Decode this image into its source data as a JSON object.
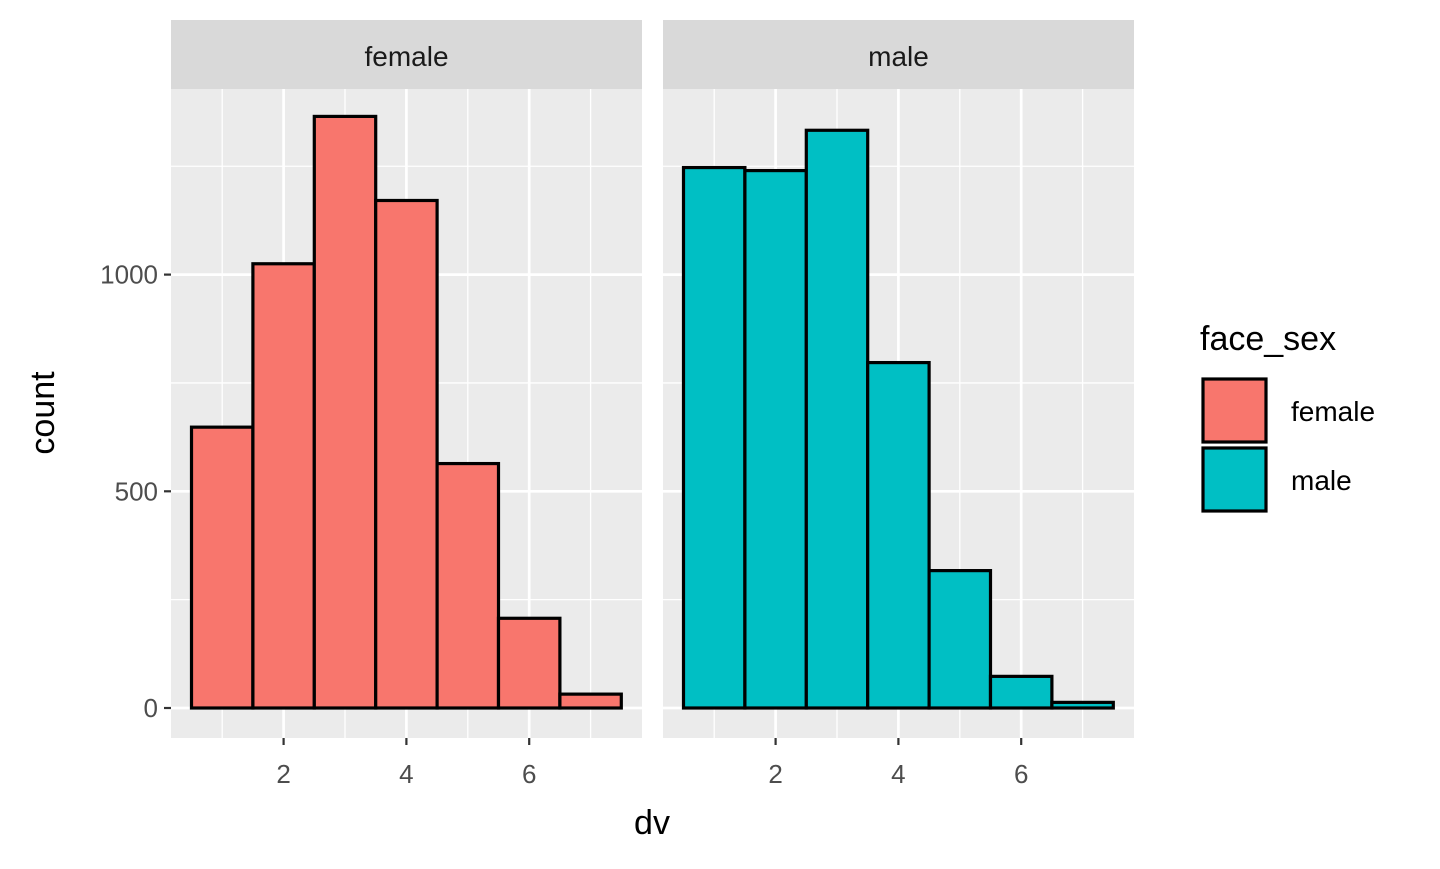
{
  "chart_data": {
    "type": "bar",
    "facets": [
      "female",
      "male"
    ],
    "x": [
      1,
      2,
      3,
      4,
      5,
      6,
      7
    ],
    "xlabel": "dv",
    "ylabel": "count",
    "xlim": [
      0.5,
      7.5
    ],
    "ylim": [
      0,
      1360
    ],
    "x_ticks": [
      2,
      4,
      6
    ],
    "y_ticks": [
      0,
      500,
      1000
    ],
    "grid": true,
    "legend": {
      "title": "face_sex",
      "position": "right",
      "entries": [
        "female",
        "male"
      ]
    },
    "series": [
      {
        "name": "female",
        "color": "#F8766D",
        "values": [
          648,
          1025,
          1365,
          1171,
          564,
          207,
          32
        ]
      },
      {
        "name": "male",
        "color": "#00BFC4",
        "values": [
          1247,
          1240,
          1333,
          797,
          317,
          73,
          13
        ]
      }
    ]
  }
}
